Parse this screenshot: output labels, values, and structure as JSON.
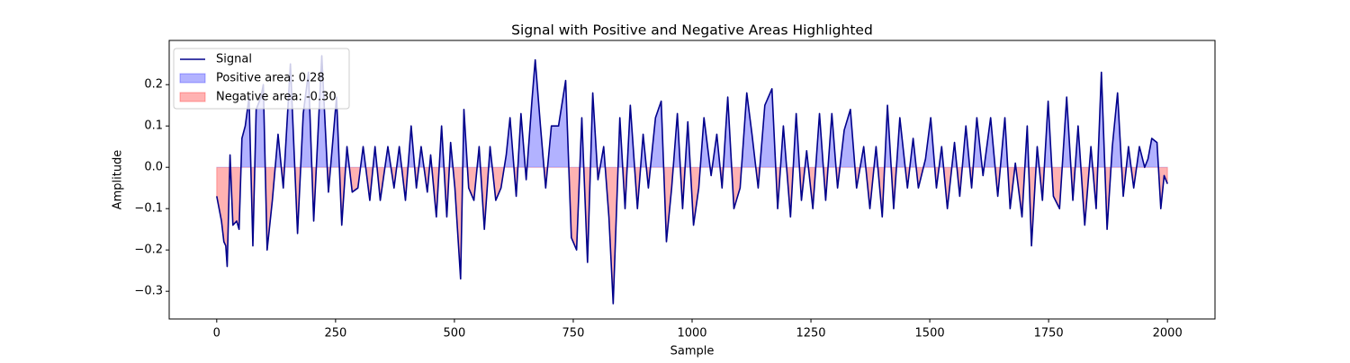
{
  "chart_data": {
    "type": "line",
    "title": "Signal with Positive and Negative Areas Highlighted",
    "x_label": "Sample",
    "y_label": "Amplitude",
    "x": [
      0,
      10,
      15,
      19,
      22,
      28,
      34,
      42,
      47,
      53,
      60,
      68,
      76,
      83,
      93,
      98,
      106,
      117,
      129,
      140,
      155,
      170,
      182,
      193,
      204,
      221,
      235,
      252,
      263,
      274,
      285,
      297,
      308,
      322,
      333,
      344,
      360,
      373,
      384,
      397,
      409,
      420,
      430,
      443,
      450,
      462,
      473,
      484,
      492,
      501,
      513,
      520,
      530,
      541,
      552,
      563,
      575,
      587,
      598,
      609,
      617,
      630,
      640,
      651,
      663,
      670,
      681,
      692,
      704,
      719,
      734,
      746,
      757,
      768,
      780,
      791,
      802,
      814,
      825,
      834,
      848,
      859,
      870,
      885,
      897,
      908,
      923,
      935,
      946,
      957,
      969,
      980,
      991,
      1003,
      1014,
      1025,
      1040,
      1052,
      1063,
      1075,
      1088,
      1101,
      1115,
      1126,
      1139,
      1153,
      1168,
      1180,
      1192,
      1207,
      1219,
      1230,
      1241,
      1254,
      1268,
      1281,
      1294,
      1306,
      1320,
      1333,
      1346,
      1361,
      1374,
      1387,
      1400,
      1411,
      1424,
      1437,
      1453,
      1465,
      1476,
      1491,
      1502,
      1514,
      1525,
      1537,
      1552,
      1563,
      1576,
      1588,
      1599,
      1612,
      1628,
      1643,
      1658,
      1669,
      1680,
      1694,
      1705,
      1714,
      1726,
      1737,
      1749,
      1760,
      1773,
      1788,
      1801,
      1812,
      1826,
      1839,
      1850,
      1861,
      1873,
      1884,
      1895,
      1907,
      1918,
      1929,
      1941,
      1952,
      1959,
      1967,
      1978,
      1986,
      1993,
      2000
    ],
    "series": [
      {
        "name": "Signal",
        "color": "#00008b",
        "values": [
          -0.07,
          -0.13,
          -0.18,
          -0.19,
          -0.24,
          0.03,
          -0.14,
          -0.13,
          -0.15,
          0.07,
          0.1,
          0.17,
          -0.19,
          0.14,
          0.17,
          0.2,
          -0.2,
          -0.08,
          0.08,
          -0.05,
          0.25,
          -0.16,
          0.13,
          0.23,
          -0.13,
          0.27,
          -0.06,
          0.17,
          -0.14,
          0.05,
          -0.06,
          -0.05,
          0.05,
          -0.08,
          0.05,
          -0.08,
          0.05,
          -0.05,
          0.05,
          -0.08,
          0.1,
          -0.05,
          0.05,
          -0.06,
          0.03,
          -0.12,
          0.1,
          -0.12,
          0.06,
          -0.05,
          -0.27,
          0.14,
          -0.05,
          -0.08,
          0.05,
          -0.15,
          0.05,
          -0.08,
          -0.05,
          0.03,
          0.12,
          -0.07,
          0.13,
          -0.03,
          0.16,
          0.26,
          0.1,
          -0.05,
          0.1,
          0.1,
          0.21,
          -0.17,
          -0.2,
          0.12,
          -0.23,
          0.18,
          -0.03,
          0.05,
          -0.12,
          -0.33,
          0.12,
          -0.1,
          0.15,
          -0.1,
          0.08,
          -0.05,
          0.12,
          0.16,
          -0.18,
          -0.05,
          0.13,
          -0.1,
          0.11,
          -0.14,
          -0.05,
          0.12,
          -0.02,
          0.08,
          -0.05,
          0.17,
          -0.1,
          -0.05,
          0.18,
          0.08,
          -0.05,
          0.15,
          0.19,
          -0.1,
          0.1,
          -0.12,
          0.13,
          -0.08,
          0.04,
          -0.1,
          0.13,
          -0.08,
          0.13,
          -0.05,
          0.09,
          0.14,
          -0.05,
          0.05,
          -0.1,
          0.05,
          -0.12,
          0.15,
          -0.1,
          0.12,
          -0.05,
          0.07,
          -0.05,
          0.02,
          0.12,
          -0.05,
          0.05,
          -0.1,
          0.06,
          -0.07,
          0.1,
          -0.05,
          0.12,
          -0.02,
          0.12,
          -0.07,
          0.12,
          -0.1,
          0.01,
          -0.12,
          0.1,
          -0.19,
          0.05,
          -0.08,
          0.16,
          -0.07,
          -0.1,
          0.17,
          -0.08,
          0.1,
          -0.14,
          0.05,
          -0.1,
          0.23,
          -0.15,
          0.05,
          0.18,
          -0.07,
          0.05,
          -0.05,
          0.05,
          0,
          0.02,
          0.07,
          0.06,
          -0.1,
          -0.02,
          -0.04
        ]
      }
    ],
    "areas": [
      {
        "name": "Positive area: 0.28",
        "color": "#0000ff",
        "side": "above"
      },
      {
        "name": "Negative area: -0.30",
        "color": "#ff0000",
        "side": "below"
      }
    ],
    "xlim": [
      -100,
      2100
    ],
    "xticks": [
      0,
      250,
      500,
      750,
      1000,
      1250,
      1500,
      1750,
      2000
    ],
    "ylim": [
      -0.367,
      0.307
    ],
    "yticks": [
      {
        "value": -0.3,
        "label": "−0.3"
      },
      {
        "value": -0.2,
        "label": "−0.2"
      },
      {
        "value": -0.1,
        "label": "−0.1"
      },
      {
        "value": 0,
        "label": "0.0"
      },
      0.1,
      0.2
    ],
    "legend": "upper left"
  }
}
